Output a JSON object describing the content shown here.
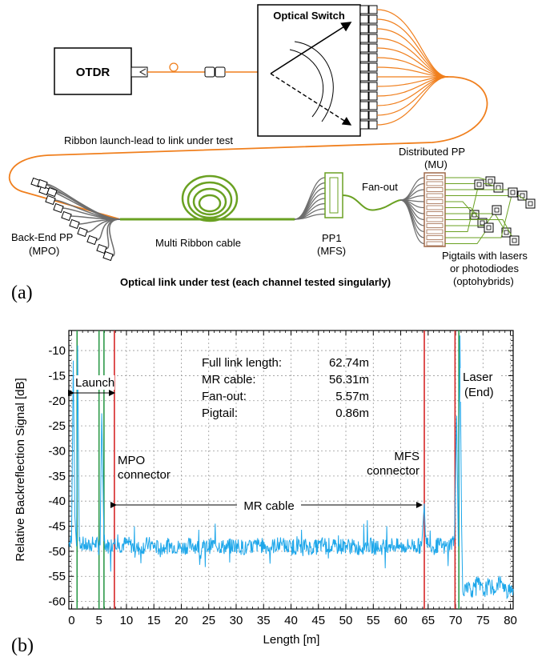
{
  "panel_a": {
    "label": "(a)",
    "otdr_label": "OTDR",
    "switch_label": "Optical Switch",
    "ribbon_launch_label": "Ribbon launch-lead to link under test",
    "backend_label_1": "Back-End PP",
    "backend_label_2": "(MPO)",
    "cable_label": "Multi Ribbon cable",
    "pp1_label_1": "PP1",
    "pp1_label_2": "(MFS)",
    "fanout_label": "Fan-out",
    "distributed_label_1": "Distributed PP",
    "distributed_label_2": "(MU)",
    "pigtails_label_1": "Pigtails with lasers",
    "pigtails_label_2": "or photodiodes",
    "pigtails_label_3": "(optohybrids)",
    "caption": "Optical link under test (each channel tested singularly)",
    "colors": {
      "fiber_orange": "#f07f1d",
      "ribbon_green": "#6aa122",
      "fiber_gray": "#6d6d6d"
    }
  },
  "panel_b": {
    "label": "(b)",
    "stats": [
      {
        "name": "Full link length:",
        "value": "62.74m"
      },
      {
        "name": "MR cable:",
        "value": "56.31m"
      },
      {
        "name": "Fan-out:",
        "value": "5.57m"
      },
      {
        "name": "Pigtail:",
        "value": "0.86m"
      }
    ],
    "annotations": {
      "launch": "Launch",
      "mpo_1": "MPO",
      "mpo_2": "connector",
      "mfs_1": "MFS",
      "mfs_2": "connector",
      "mr_cable": "MR cable",
      "laser_1": "Laser",
      "laser_2": "(End)"
    }
  },
  "chart_data": {
    "type": "line",
    "xlabel": "Length [m]",
    "ylabel": "Relative Backreflection Signal [dB]",
    "xlim": [
      -0.5,
      80.5
    ],
    "ylim": [
      -61.5,
      -6
    ],
    "xticks": [
      0,
      5,
      10,
      15,
      20,
      25,
      30,
      35,
      40,
      45,
      50,
      55,
      60,
      65,
      70,
      75,
      80
    ],
    "yticks": [
      -10,
      -15,
      -20,
      -25,
      -30,
      -35,
      -40,
      -45,
      -50,
      -55,
      -60
    ],
    "xtick_labels": [
      "0",
      "5",
      "10",
      "15",
      "20",
      "25",
      "30",
      "35",
      "40",
      "45",
      "50",
      "55",
      "60",
      "65",
      "70",
      "75",
      "80"
    ],
    "ytick_labels": [
      "-10",
      "-15",
      "-20",
      "-25",
      "-30",
      "-35",
      "-40",
      "-45",
      "-50",
      "-55",
      "-60"
    ],
    "series_color": "#1ea7ea",
    "marker_lines": [
      {
        "x": 1.0,
        "color": "#2e9a4a"
      },
      {
        "x": 5.0,
        "color": "#2e9a4a"
      },
      {
        "x": 5.9,
        "color": "#2e9a4a"
      },
      {
        "x": 7.8,
        "color": "#d62728"
      },
      {
        "x": 64.3,
        "color": "#d62728"
      },
      {
        "x": 69.9,
        "color": "#d62728"
      },
      {
        "x": 70.6,
        "color": "#2e9a4a"
      }
    ],
    "series": [
      {
        "points": [
          [
            -0.5,
            -48.5
          ],
          [
            0.0,
            -48.0
          ],
          [
            0.3,
            -12.0
          ],
          [
            0.6,
            -43.0
          ],
          [
            0.9,
            -49.0
          ],
          [
            1.1,
            -9.0
          ],
          [
            1.4,
            -48.0
          ],
          [
            2.0,
            -48.5
          ],
          [
            3.0,
            -49.2
          ],
          [
            4.0,
            -48.4
          ],
          [
            5.2,
            -48.8
          ],
          [
            5.5,
            -22.5
          ],
          [
            5.7,
            -35.0
          ],
          [
            5.9,
            -48.0
          ],
          [
            6.5,
            -49.0
          ],
          [
            7.5,
            -48.6
          ],
          [
            7.9,
            -47.5
          ],
          [
            8.5,
            -49.0
          ],
          [
            10.0,
            -48.4
          ],
          [
            12.0,
            -49.5
          ],
          [
            14.0,
            -48.6
          ],
          [
            16.0,
            -49.4
          ],
          [
            18.0,
            -48.8
          ],
          [
            20.0,
            -49.3
          ],
          [
            22.0,
            -48.7
          ],
          [
            24.0,
            -49.4
          ],
          [
            26.0,
            -48.6
          ],
          [
            28.0,
            -49.2
          ],
          [
            30.0,
            -48.8
          ],
          [
            32.0,
            -49.5
          ],
          [
            34.0,
            -48.7
          ],
          [
            36.0,
            -49.2
          ],
          [
            38.0,
            -48.6
          ],
          [
            40.0,
            -49.3
          ],
          [
            42.0,
            -48.8
          ],
          [
            44.0,
            -49.4
          ],
          [
            46.0,
            -48.6
          ],
          [
            48.0,
            -49.2
          ],
          [
            50.0,
            -48.8
          ],
          [
            52.0,
            -49.3
          ],
          [
            54.0,
            -48.7
          ],
          [
            56.0,
            -49.4
          ],
          [
            58.0,
            -48.6
          ],
          [
            60.0,
            -49.2
          ],
          [
            62.0,
            -48.8
          ],
          [
            63.8,
            -49.0
          ],
          [
            64.1,
            -44.0
          ],
          [
            64.3,
            -40.5
          ],
          [
            64.5,
            -47.0
          ],
          [
            65.0,
            -48.6
          ],
          [
            66.0,
            -49.2
          ],
          [
            67.0,
            -48.7
          ],
          [
            68.0,
            -49.3
          ],
          [
            69.0,
            -48.6
          ],
          [
            69.8,
            -47.5
          ],
          [
            70.2,
            -23.0
          ],
          [
            70.5,
            -49.0
          ],
          [
            70.8,
            -7.0
          ],
          [
            71.1,
            -45.0
          ],
          [
            71.3,
            -58.0
          ],
          [
            72.0,
            -56.5
          ],
          [
            73.0,
            -57.8
          ],
          [
            74.0,
            -56.2
          ],
          [
            75.0,
            -58.2
          ],
          [
            76.0,
            -56.8
          ],
          [
            77.0,
            -57.5
          ],
          [
            78.0,
            -56.0
          ],
          [
            79.0,
            -58.0
          ],
          [
            80.0,
            -57.0
          ],
          [
            80.5,
            -57.5
          ]
        ]
      }
    ]
  }
}
